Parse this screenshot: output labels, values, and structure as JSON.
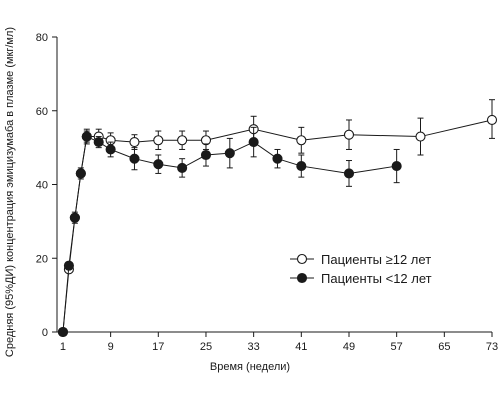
{
  "chart_data": {
    "type": "line",
    "xlabel": "Время (недели)",
    "ylabel": "Средняя (95%ДИ) концентрация эмицизумаба в плазме (мкг/мл)",
    "xlim": [
      0,
      73
    ],
    "ylim": [
      0,
      80
    ],
    "xticks": [
      1,
      9,
      17,
      25,
      33,
      41,
      49,
      57,
      65,
      73
    ],
    "yticks": [
      0,
      20,
      40,
      60,
      80
    ],
    "grid": false,
    "legend_position": "center-right",
    "series": [
      {
        "name": "Пациенты ≥12 лет",
        "marker": "open-circle",
        "color": "#1a1a1a",
        "points": [
          {
            "x": 1,
            "y": 0,
            "lo": 0,
            "hi": 0
          },
          {
            "x": 2,
            "y": 17,
            "lo": 16,
            "hi": 18
          },
          {
            "x": 3,
            "y": 31,
            "lo": 29.5,
            "hi": 32.5
          },
          {
            "x": 4,
            "y": 43,
            "lo": 41.5,
            "hi": 44.5
          },
          {
            "x": 5,
            "y": 53,
            "lo": 51,
            "hi": 55
          },
          {
            "x": 7,
            "y": 53,
            "lo": 51,
            "hi": 55
          },
          {
            "x": 9,
            "y": 52,
            "lo": 50,
            "hi": 54
          },
          {
            "x": 13,
            "y": 51.5,
            "lo": 49.5,
            "hi": 53.5
          },
          {
            "x": 17,
            "y": 52,
            "lo": 49.5,
            "hi": 54.5
          },
          {
            "x": 21,
            "y": 52,
            "lo": 49.5,
            "hi": 54.5
          },
          {
            "x": 25,
            "y": 52,
            "lo": 49.5,
            "hi": 54.5
          },
          {
            "x": 33,
            "y": 55,
            "lo": 51.5,
            "hi": 58.5
          },
          {
            "x": 41,
            "y": 52,
            "lo": 48.5,
            "hi": 55.5
          },
          {
            "x": 49,
            "y": 53.5,
            "lo": 49.5,
            "hi": 57.5
          },
          {
            "x": 61,
            "y": 53,
            "lo": 48,
            "hi": 58
          },
          {
            "x": 73,
            "y": 57.5,
            "lo": 52.5,
            "hi": 63
          }
        ]
      },
      {
        "name": "Пациенты <12 лет",
        "marker": "filled-circle",
        "color": "#1a1a1a",
        "points": [
          {
            "x": 1,
            "y": 0,
            "lo": 0,
            "hi": 0
          },
          {
            "x": 2,
            "y": 18,
            "lo": 17,
            "hi": 19
          },
          {
            "x": 3,
            "y": 31,
            "lo": 30,
            "hi": 32
          },
          {
            "x": 4,
            "y": 43,
            "lo": 42,
            "hi": 44
          },
          {
            "x": 5,
            "y": 53,
            "lo": 51.5,
            "hi": 54.5
          },
          {
            "x": 7,
            "y": 51.5,
            "lo": 50,
            "hi": 53
          },
          {
            "x": 9,
            "y": 49.5,
            "lo": 47.5,
            "hi": 51.5
          },
          {
            "x": 13,
            "y": 47,
            "lo": 44,
            "hi": 50
          },
          {
            "x": 17,
            "y": 45.5,
            "lo": 43,
            "hi": 48
          },
          {
            "x": 21,
            "y": 44.5,
            "lo": 42,
            "hi": 47
          },
          {
            "x": 25,
            "y": 48,
            "lo": 45,
            "hi": 51
          },
          {
            "x": 29,
            "y": 48.5,
            "lo": 44.5,
            "hi": 52.5
          },
          {
            "x": 33,
            "y": 51.5,
            "lo": 47.5,
            "hi": 55.5
          },
          {
            "x": 37,
            "y": 47,
            "lo": 44.5,
            "hi": 49.5
          },
          {
            "x": 41,
            "y": 45,
            "lo": 42,
            "hi": 48
          },
          {
            "x": 49,
            "y": 43,
            "lo": 39.5,
            "hi": 46.5
          },
          {
            "x": 57,
            "y": 45,
            "lo": 40.5,
            "hi": 49.5
          }
        ]
      }
    ]
  }
}
